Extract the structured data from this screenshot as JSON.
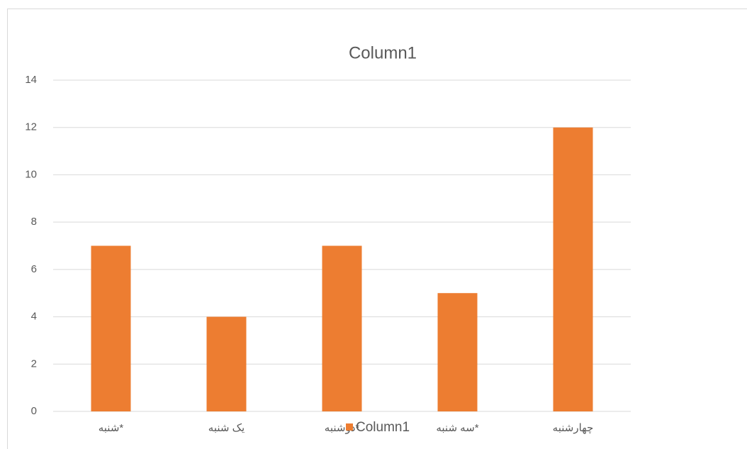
{
  "chart_data": {
    "type": "bar",
    "title": "Column1",
    "categories": [
      "شنبه*",
      "یک شنبه",
      "دوشنبه*",
      "سه شنبه*",
      "چهارشنبه"
    ],
    "series": [
      {
        "name": "Column1",
        "color": "#ed7d31",
        "values": [
          7,
          4,
          7,
          5,
          12
        ]
      }
    ],
    "ylim": [
      0,
      14
    ],
    "yticks": [
      0,
      2,
      4,
      6,
      8,
      10,
      12,
      14
    ],
    "grid": true,
    "legend": "bottom"
  }
}
